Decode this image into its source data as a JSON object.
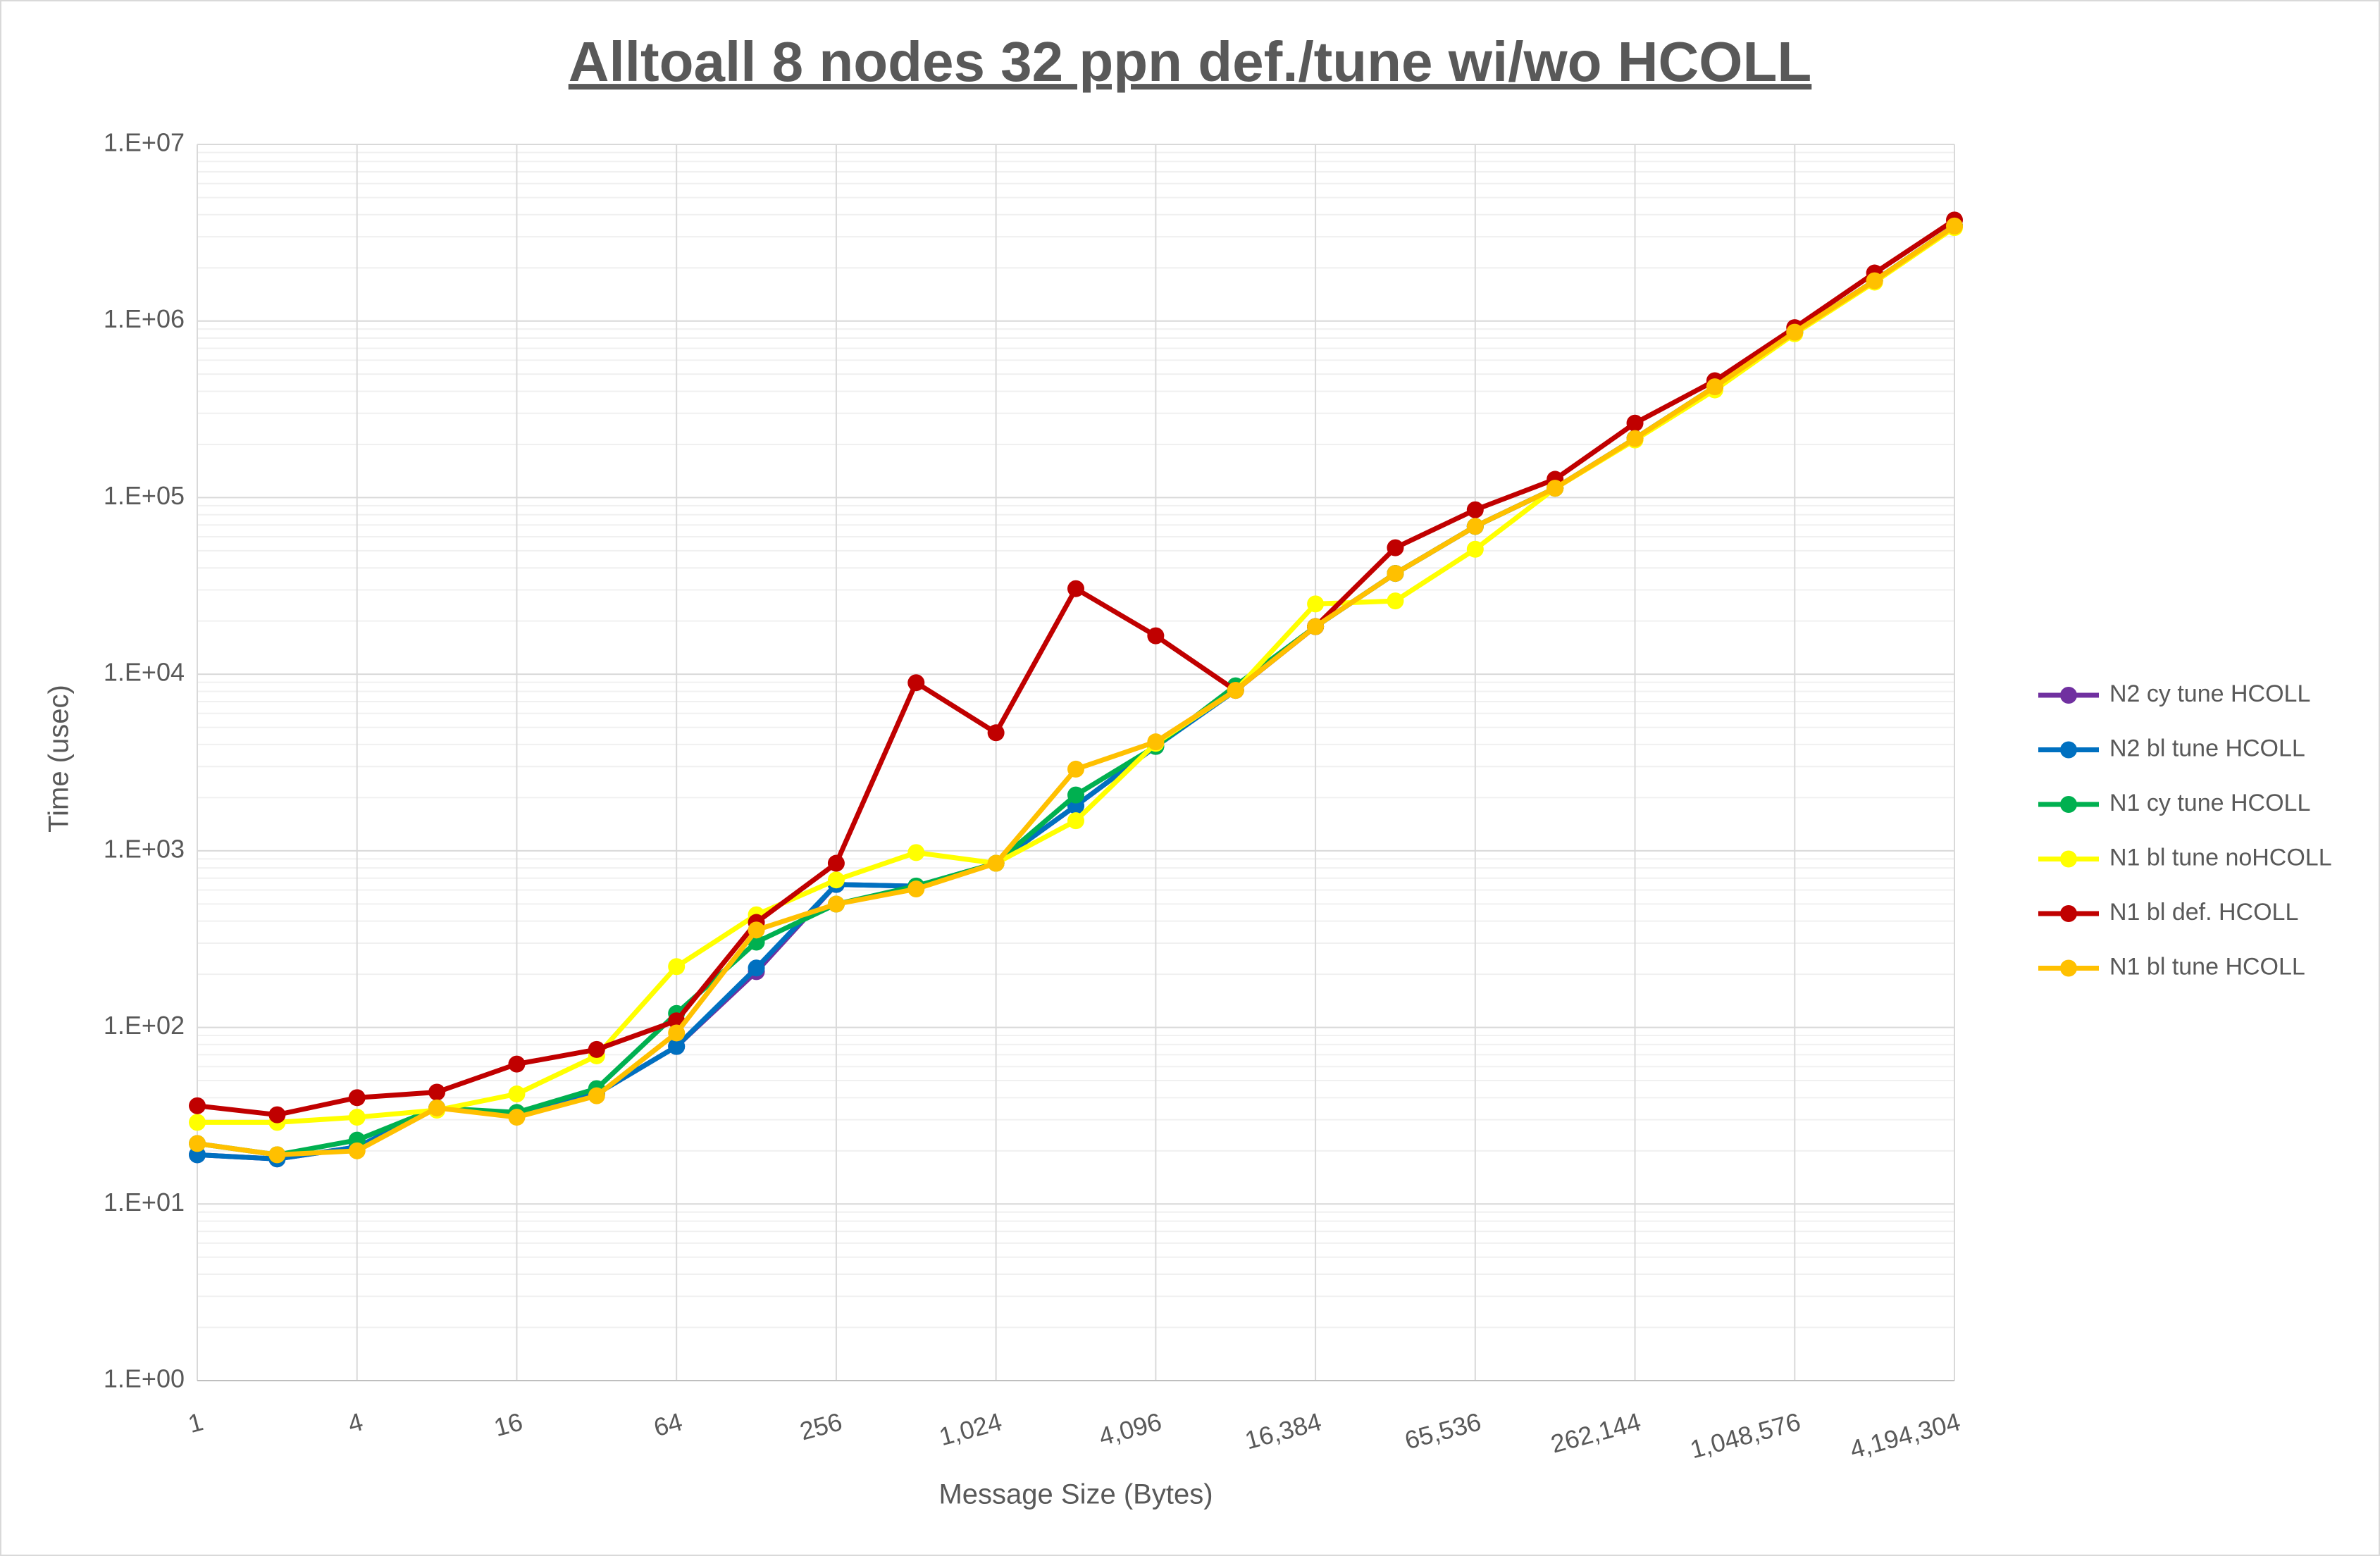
{
  "chart_data": {
    "type": "line",
    "title": "Alltoall 8 nodes 32 ppn def./tune wi/wo HCOLL",
    "x_label": "Message Size (Bytes)",
    "y_label": "Time (usec)",
    "x": [
      1,
      2,
      4,
      8,
      16,
      32,
      64,
      128,
      256,
      512,
      1024,
      2048,
      4096,
      8192,
      16384,
      32768,
      65536,
      131072,
      262144,
      524288,
      1048576,
      2097152,
      4194304
    ],
    "xscale": "log",
    "yscale": "log",
    "grid": true,
    "legend": "right",
    "xlim": [
      1,
      4194304
    ],
    "xticks": [
      1,
      4,
      16,
      64,
      256,
      {
        "value": 1024,
        "label": "1,024"
      },
      {
        "value": 4096,
        "label": "4,096"
      },
      {
        "value": 16384,
        "label": "16,384"
      },
      {
        "value": 65536,
        "label": "65,536"
      },
      {
        "value": 262144,
        "label": "262,144"
      },
      {
        "value": 1048576,
        "label": "1,048,576"
      },
      {
        "value": 4194304,
        "label": "4,194,304"
      }
    ],
    "ylim": [
      1,
      10000000
    ],
    "yticks": [
      {
        "value": 1,
        "label": "1.E+00"
      },
      {
        "value": 10,
        "label": "1.E+01"
      },
      {
        "value": 100,
        "label": "1.E+02"
      },
      {
        "value": 1000,
        "label": "1.E+03"
      },
      {
        "value": 10000,
        "label": "1.E+04"
      },
      {
        "value": 100000,
        "label": "1.E+05"
      },
      {
        "value": 1000000,
        "label": "1.E+06"
      },
      {
        "value": 10000000,
        "label": "1.E+07"
      }
    ],
    "series": [
      {
        "name": "N2 cy tune HCOLL",
        "color": "#7030a0",
        "values": [
          19,
          18,
          21,
          35,
          32,
          42,
          78,
          207,
          645,
          630,
          850,
          1800,
          3900,
          8100,
          18600,
          37200,
          68700,
          113000,
          216000,
          424000,
          864000,
          1690000,
          3450000
        ]
      },
      {
        "name": "N2 bl tune HCOLL",
        "color": "#0070c0",
        "values": [
          19,
          18,
          21,
          35,
          32,
          42,
          78,
          217,
          645,
          630,
          850,
          1800,
          3900,
          8100,
          18600,
          37200,
          68700,
          113000,
          216000,
          424000,
          864000,
          1690000,
          3450000
        ]
      },
      {
        "name": "N1 cy tune HCOLL",
        "color": "#00b050",
        "values": [
          22,
          19,
          23,
          35,
          33,
          45,
          120,
          304,
          499,
          632,
          850,
          2070,
          3900,
          8600,
          18600,
          37200,
          68700,
          113000,
          216000,
          424000,
          864000,
          1690000,
          3450000
        ]
      },
      {
        "name": "N1 bl tune noHCOLL",
        "color": "#ffff00",
        "values": [
          29,
          29,
          31,
          34,
          42,
          69,
          221,
          434,
          684,
          977,
          850,
          1480,
          4060,
          8100,
          25000,
          26000,
          51000,
          113000,
          212000,
          407000,
          847000,
          1660000,
          3380000
        ]
      },
      {
        "name": "N1 bl def. HCOLL",
        "color": "#c00000",
        "values": [
          36,
          32,
          40,
          43,
          62,
          75,
          109,
          393,
          850,
          8950,
          4660,
          30500,
          16500,
          8100,
          18600,
          52000,
          85300,
          127000,
          264000,
          459000,
          917000,
          1870000,
          3730000
        ]
      },
      {
        "name": "N1 bl tune HCOLL",
        "color": "#ffc000",
        "values": [
          22,
          19,
          20,
          35,
          31,
          41,
          93,
          356,
          499,
          608,
          850,
          2900,
          4140,
          8100,
          18600,
          37200,
          68700,
          113000,
          216000,
          424000,
          864000,
          1690000,
          3450000
        ]
      }
    ]
  }
}
